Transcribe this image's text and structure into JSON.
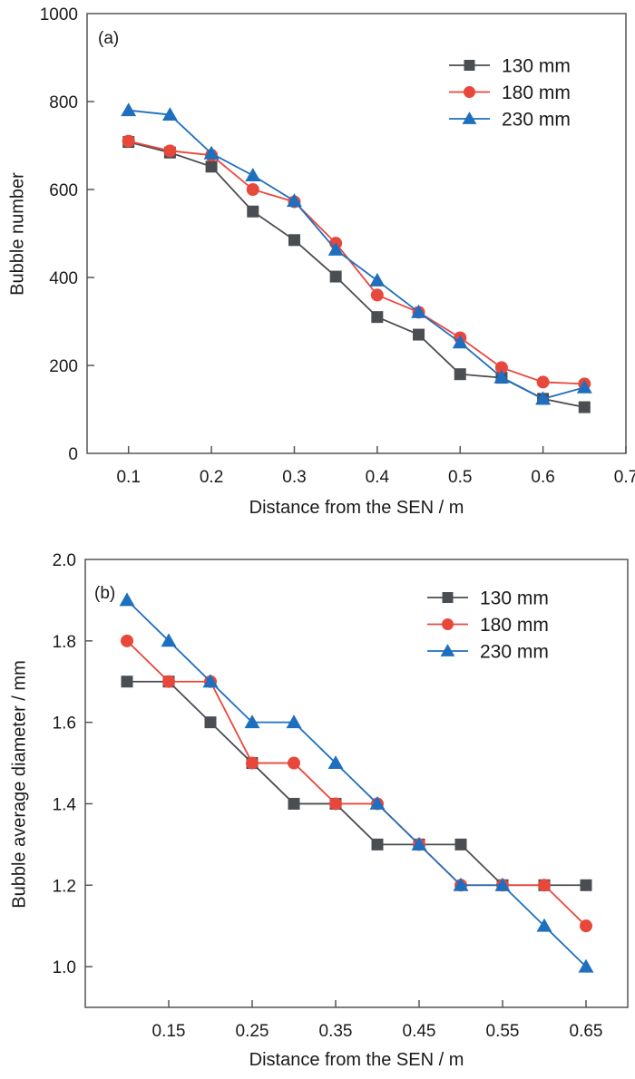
{
  "chart_data": [
    {
      "type": "line",
      "panel_label": "(a)",
      "title": "",
      "xlabel": "Distance from the SEN / m",
      "ylabel": "Bubble number",
      "xlim": [
        0.05,
        0.7
      ],
      "ylim": [
        0,
        1000
      ],
      "xticks": [
        0.1,
        0.2,
        0.3,
        0.4,
        0.5,
        0.6,
        0.7
      ],
      "xtick_labels": [
        "0.1",
        "0.2",
        "0.3",
        "0.4",
        "0.5",
        "0.6",
        "0.7"
      ],
      "yticks": [
        0,
        200,
        400,
        600,
        800,
        1000
      ],
      "ytick_labels": [
        "0",
        "200",
        "400",
        "600",
        "800",
        "1000"
      ],
      "grid": false,
      "legend_position": "top-right",
      "x": [
        0.1,
        0.15,
        0.2,
        0.25,
        0.3,
        0.35,
        0.4,
        0.45,
        0.5,
        0.55,
        0.6,
        0.65
      ],
      "series": [
        {
          "name": "130 mm",
          "color": "#4a4d52",
          "marker": "square",
          "values": [
            708,
            684,
            652,
            550,
            485,
            402,
            310,
            270,
            180,
            172,
            124,
            105
          ]
        },
        {
          "name": "180 mm",
          "color": "#e8483c",
          "marker": "circle",
          "values": [
            710,
            688,
            678,
            600,
            572,
            478,
            360,
            321,
            263,
            195,
            162,
            158
          ]
        },
        {
          "name": "230 mm",
          "color": "#1f6fbf",
          "marker": "triangle",
          "values": [
            780,
            770,
            682,
            632,
            574,
            463,
            393,
            321,
            252,
            173,
            124,
            150
          ]
        }
      ]
    },
    {
      "type": "line",
      "panel_label": "(b)",
      "title": "",
      "xlabel": "Distance from the SEN / m",
      "ylabel": "Bubble average diameter / mm",
      "xlim": [
        0.05,
        0.7
      ],
      "ylim": [
        0.9,
        2.0
      ],
      "xticks": [
        0.15,
        0.25,
        0.35,
        0.45,
        0.55,
        0.65
      ],
      "xtick_labels": [
        "0.15",
        "0.25",
        "0.35",
        "0.45",
        "0.55",
        "0.65"
      ],
      "yticks": [
        1.0,
        1.2,
        1.4,
        1.6,
        1.8,
        2.0
      ],
      "ytick_labels": [
        "1.0",
        "1.2",
        "1.4",
        "1.6",
        "1.8",
        "2.0"
      ],
      "grid": false,
      "legend_position": "top-right",
      "x": [
        0.1,
        0.15,
        0.2,
        0.25,
        0.3,
        0.35,
        0.4,
        0.45,
        0.5,
        0.55,
        0.6,
        0.65
      ],
      "series": [
        {
          "name": "130 mm",
          "color": "#4a4d52",
          "marker": "square",
          "values": [
            1.7,
            1.7,
            1.6,
            1.5,
            1.4,
            1.4,
            1.3,
            1.3,
            1.3,
            1.2,
            1.2,
            1.2
          ]
        },
        {
          "name": "180 mm",
          "color": "#e8483c",
          "marker": "circle",
          "values": [
            1.8,
            1.7,
            1.7,
            1.5,
            1.5,
            1.4,
            1.4,
            1.3,
            1.2,
            1.2,
            1.2,
            1.1
          ]
        },
        {
          "name": "230 mm",
          "color": "#1f6fbf",
          "marker": "triangle",
          "values": [
            1.9,
            1.8,
            1.7,
            1.6,
            1.6,
            1.5,
            1.4,
            1.3,
            1.2,
            1.2,
            1.1,
            1.0
          ]
        }
      ]
    }
  ]
}
